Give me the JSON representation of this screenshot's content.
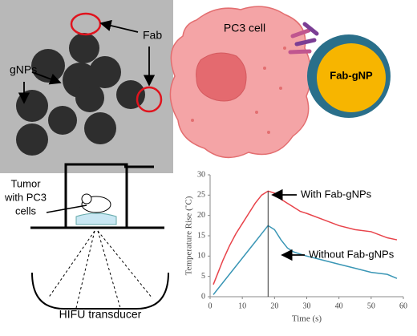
{
  "tem": {
    "fab_label": "Fab",
    "gnp_label": "gNPs"
  },
  "cell": {
    "cell_label": "PC3 cell",
    "particle_label": "Fab-gNP"
  },
  "setup": {
    "tumor_label": [
      "Tumor",
      "with PC3",
      "cells"
    ],
    "transducer_label": "HIFU transducer"
  },
  "chart_data": {
    "type": "line",
    "x_label": "Time (s)",
    "y_label": "Temperature Rise (˚C)",
    "x": [
      1,
      2,
      4,
      6,
      8,
      10,
      12,
      14,
      16,
      18,
      20,
      22,
      24,
      26,
      28,
      30,
      35,
      40,
      45,
      50,
      55,
      58
    ],
    "series": [
      {
        "name": "With Fab-gNPs",
        "color": "#e8434a",
        "values": [
          3,
          5,
          9,
          12.5,
          15.5,
          18,
          20.5,
          23,
          25,
          26,
          25.5,
          24,
          23,
          22,
          21,
          20.5,
          19,
          17.5,
          16.5,
          16,
          14.5,
          14
        ]
      },
      {
        "name": "Without Fab-gNPs",
        "color": "#3a96b5",
        "values": [
          0.5,
          1.5,
          3.5,
          5.5,
          7.5,
          9.5,
          11.5,
          13.5,
          15.5,
          17.5,
          16.5,
          14,
          12,
          11,
          10.5,
          10,
          9,
          8,
          7,
          6,
          5.5,
          4.5
        ]
      }
    ],
    "vline_x": 18,
    "xlim": [
      0,
      60
    ],
    "xticks": [
      0,
      10,
      20,
      30,
      40,
      50,
      60
    ],
    "ylim": [
      0,
      30
    ],
    "yticks": [
      0,
      5,
      10,
      15,
      20,
      25,
      30
    ]
  }
}
